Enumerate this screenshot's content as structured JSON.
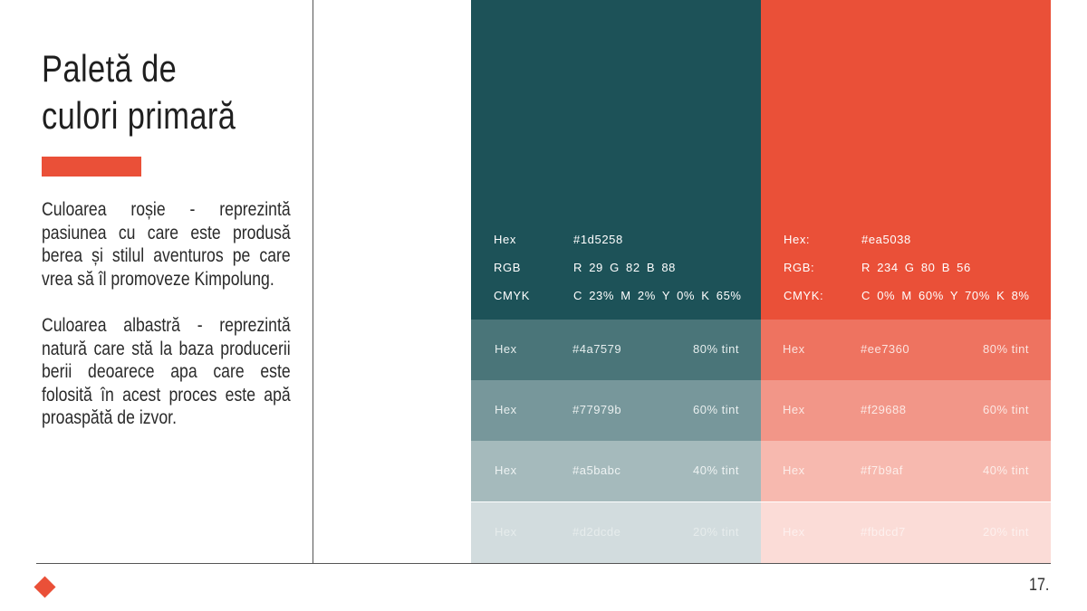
{
  "title": {
    "line1": "Paletă de",
    "line2": "culori primară"
  },
  "description": {
    "red": "Culoarea roșie - reprezintă pasiunea cu care este produsă berea și stilul aventuros pe care vrea să îl promoveze Kimpolung.",
    "blue": "Culoarea albastră - reprezintă natură care stă la baza producerii berii deoarece apa care este folosită în acest proces este apă proaspătă de izvor."
  },
  "page_number": "17.",
  "palette": {
    "teal": {
      "color": "#1d5258",
      "hex_label": "Hex",
      "hex_value": "#1d5258",
      "rgb_label": "RGB",
      "rgb_value": "R 29   G 82   B 88",
      "cmyk_label": "CMYK",
      "cmyk_value": "C 23%   M 2%   Y 0%   K 65%",
      "tints": [
        {
          "label": "Hex",
          "hex": "#4a7579",
          "percent": "80% tint",
          "color": "#4a7579",
          "text_color": "#e6eeee"
        },
        {
          "label": "Hex",
          "hex": "#77979b",
          "percent": "60% tint",
          "color": "#77979b",
          "text_color": "#e9efef"
        },
        {
          "label": "Hex",
          "hex": "#a5babc",
          "percent": "40% tint",
          "color": "#a5babc",
          "text_color": "#eef3f3"
        },
        {
          "label": "Hex",
          "hex": "#d2dcde",
          "percent": "20% tint",
          "color": "#d2dcde",
          "text_color": "#e6ecec"
        }
      ]
    },
    "red": {
      "color": "#ea5038",
      "hex_label": "Hex:",
      "hex_value": "#ea5038",
      "rgb_label": "RGB:",
      "rgb_value": "R 234   G 80   B 56",
      "cmyk_label": "CMYK:",
      "cmyk_value": "C 0%   M 60%   Y 70%   K 8%",
      "tints": [
        {
          "label": "Hex",
          "hex": "#ee7360",
          "percent": "80% tint",
          "color": "#ee7360",
          "text_color": "#fbe3df"
        },
        {
          "label": "Hex",
          "hex": "#f29688",
          "percent": "60% tint",
          "color": "#f29688",
          "text_color": "#fce8e4"
        },
        {
          "label": "Hex",
          "hex": "#f7b9af",
          "percent": "40% tint",
          "color": "#f7b9af",
          "text_color": "#fdeeea"
        },
        {
          "label": "Hex",
          "hex": "#fbdcd7",
          "percent": "20% tint",
          "color": "#fbdcd7",
          "text_color": "#fdf0ee"
        }
      ]
    }
  }
}
